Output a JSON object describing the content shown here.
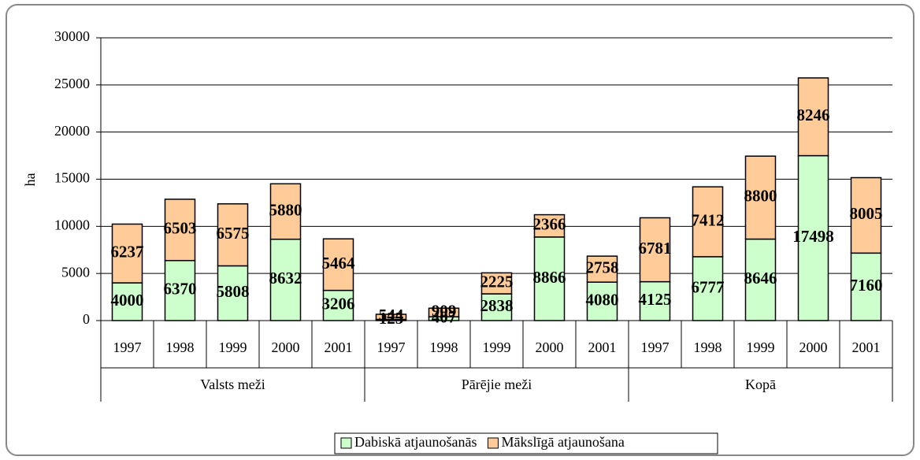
{
  "chart_data": {
    "type": "stacked_bar",
    "y_label": "ha",
    "categories": [
      "1997",
      "1998",
      "1999",
      "2000",
      "2001",
      "1997",
      "1998",
      "1999",
      "2000",
      "2001",
      "1997",
      "1998",
      "1999",
      "2000",
      "2001"
    ],
    "groups": [
      "Valsts meži",
      "Pārējie meži",
      "Kopā"
    ],
    "series": [
      {
        "name": "Dabiskā atjaunošanās",
        "color": "#ccffcc",
        "values": [
          4000,
          6370,
          5808,
          8632,
          3206,
          125,
          407,
          2838,
          8866,
          4080,
          4125,
          6777,
          8646,
          17498,
          7160
        ]
      },
      {
        "name": "Mākslīgā atjaunošana",
        "color": "#ffcc99",
        "values": [
          6237,
          6503,
          6575,
          5880,
          5464,
          544,
          909,
          2225,
          2366,
          2758,
          6781,
          7412,
          8800,
          8246,
          8005
        ]
      }
    ],
    "ylim": [
      0,
      30000
    ],
    "yticks": [
      0,
      5000,
      10000,
      15000,
      20000,
      25000,
      30000
    ],
    "grid": true,
    "legend": "bottom"
  }
}
